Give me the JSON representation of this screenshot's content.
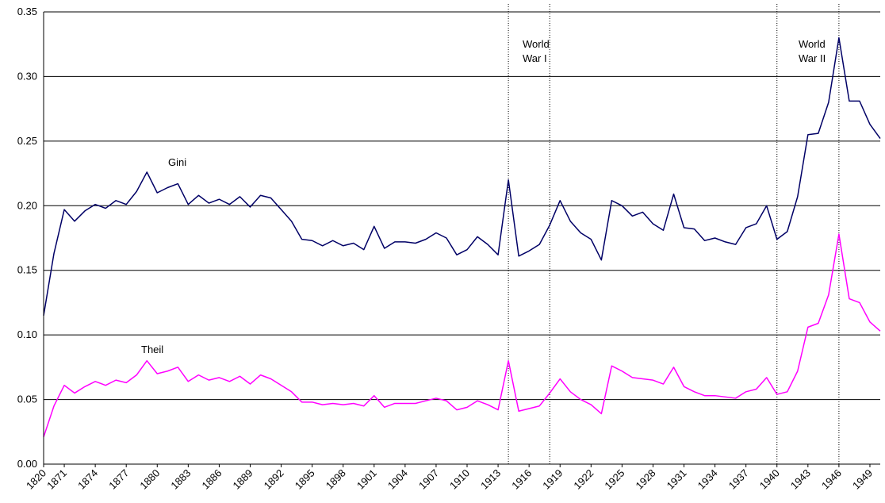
{
  "chart_data": {
    "type": "line",
    "title": "",
    "xlabel": "",
    "ylabel": "",
    "ylim": [
      0,
      0.35
    ],
    "yticks": [
      "0.00",
      "0.05",
      "0.10",
      "0.15",
      "0.20",
      "0.25",
      "0.30",
      "0.35"
    ],
    "grid": "horizontal",
    "categories": [
      "1820",
      "1870",
      "1871",
      "1872",
      "1873",
      "1874",
      "1875",
      "1876",
      "1877",
      "1878",
      "1879",
      "1880",
      "1881",
      "1882",
      "1883",
      "1884",
      "1885",
      "1886",
      "1887",
      "1888",
      "1889",
      "1890",
      "1891",
      "1892",
      "1893",
      "1894",
      "1895",
      "1896",
      "1897",
      "1898",
      "1899",
      "1900",
      "1901",
      "1902",
      "1903",
      "1904",
      "1905",
      "1906",
      "1907",
      "1908",
      "1909",
      "1910",
      "1911",
      "1912",
      "1913",
      "1914",
      "1915",
      "1916",
      "1917",
      "1918",
      "1919",
      "1920",
      "1921",
      "1922",
      "1923",
      "1924",
      "1925",
      "1926",
      "1927",
      "1928",
      "1929",
      "1930",
      "1931",
      "1932",
      "1933",
      "1934",
      "1935",
      "1936",
      "1937",
      "1938",
      "1939",
      "1940",
      "1941",
      "1942",
      "1943",
      "1944",
      "1945",
      "1946",
      "1947",
      "1948",
      "1949",
      "1950"
    ],
    "tick_labels": [
      "1820",
      "1871",
      "1874",
      "1877",
      "1880",
      "1883",
      "1886",
      "1889",
      "1892",
      "1895",
      "1898",
      "1901",
      "1904",
      "1907",
      "1910",
      "1913",
      "1916",
      "1919",
      "1922",
      "1925",
      "1928",
      "1931",
      "1934",
      "1937",
      "1940",
      "1943",
      "1946",
      "1949"
    ],
    "series": [
      {
        "name": "Gini",
        "color": "#000066",
        "values": [
          0.115,
          0.163,
          0.197,
          0.188,
          0.196,
          0.201,
          0.198,
          0.204,
          0.201,
          0.211,
          0.226,
          0.21,
          0.214,
          0.217,
          0.201,
          0.208,
          0.202,
          0.205,
          0.201,
          0.207,
          0.199,
          0.208,
          0.206,
          0.197,
          0.188,
          0.174,
          0.173,
          0.169,
          0.173,
          0.169,
          0.171,
          0.166,
          0.184,
          0.167,
          0.172,
          0.172,
          0.171,
          0.174,
          0.179,
          0.175,
          0.162,
          0.166,
          0.176,
          0.17,
          0.162,
          0.22,
          0.161,
          0.165,
          0.17,
          0.185,
          0.204,
          0.188,
          0.179,
          0.174,
          0.158,
          0.204,
          0.2,
          0.192,
          0.195,
          0.186,
          0.181,
          0.209,
          0.183,
          0.182,
          0.173,
          0.175,
          0.172,
          0.17,
          0.183,
          0.186,
          0.2,
          0.174,
          0.18,
          0.207,
          0.255,
          0.256,
          0.28,
          0.33,
          0.281,
          0.281,
          0.263,
          0.252
        ]
      },
      {
        "name": "Theil",
        "color": "#ff00ff",
        "values": [
          0.021,
          0.045,
          0.061,
          0.055,
          0.06,
          0.064,
          0.061,
          0.065,
          0.063,
          0.069,
          0.08,
          0.07,
          0.072,
          0.075,
          0.064,
          0.069,
          0.065,
          0.067,
          0.064,
          0.068,
          0.062,
          0.069,
          0.066,
          0.061,
          0.056,
          0.048,
          0.048,
          0.046,
          0.047,
          0.046,
          0.047,
          0.045,
          0.053,
          0.044,
          0.047,
          0.047,
          0.047,
          0.049,
          0.051,
          0.049,
          0.042,
          0.044,
          0.049,
          0.046,
          0.042,
          0.08,
          0.041,
          0.043,
          0.045,
          0.055,
          0.066,
          0.056,
          0.05,
          0.046,
          0.039,
          0.076,
          0.072,
          0.067,
          0.066,
          0.065,
          0.062,
          0.075,
          0.06,
          0.056,
          0.053,
          0.053,
          0.052,
          0.051,
          0.056,
          0.058,
          0.067,
          0.054,
          0.056,
          0.072,
          0.106,
          0.109,
          0.131,
          0.178,
          0.128,
          0.125,
          0.11,
          0.103
        ]
      }
    ],
    "event_lines": [
      {
        "category": "1914",
        "label_line1": "World",
        "label_line2": "War I"
      },
      {
        "category": "1918",
        "label_line1": "",
        "label_line2": ""
      },
      {
        "category": "1940",
        "label_line1": "",
        "label_line2": ""
      },
      {
        "category": "1946",
        "label_line1": "World",
        "label_line2": "War II"
      }
    ],
    "series_labels": {
      "gini": "Gini",
      "theil": "Theil"
    }
  }
}
